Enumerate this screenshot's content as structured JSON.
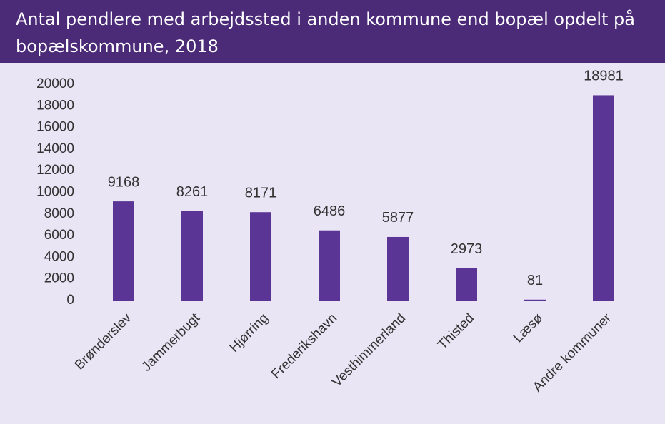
{
  "chart_data": {
    "type": "bar",
    "title": "Antal pendlere med arbejdssted i anden kommune end bopæl opdelt på bopælskommune, 2018",
    "categories": [
      "Brønderslev",
      "Jammerbugt",
      "Hjørring",
      "Frederikshavn",
      "Vesthimmerland",
      "Thisted",
      "Læsø",
      "Andre kommuner"
    ],
    "values": [
      9168,
      8261,
      8171,
      6486,
      5877,
      2973,
      81,
      18981
    ],
    "color": "#5a3596",
    "ylim": [
      0,
      20000
    ],
    "yticks": [
      0,
      2000,
      4000,
      6000,
      8000,
      10000,
      12000,
      14000,
      16000,
      18000,
      20000
    ],
    "grid": false
  }
}
